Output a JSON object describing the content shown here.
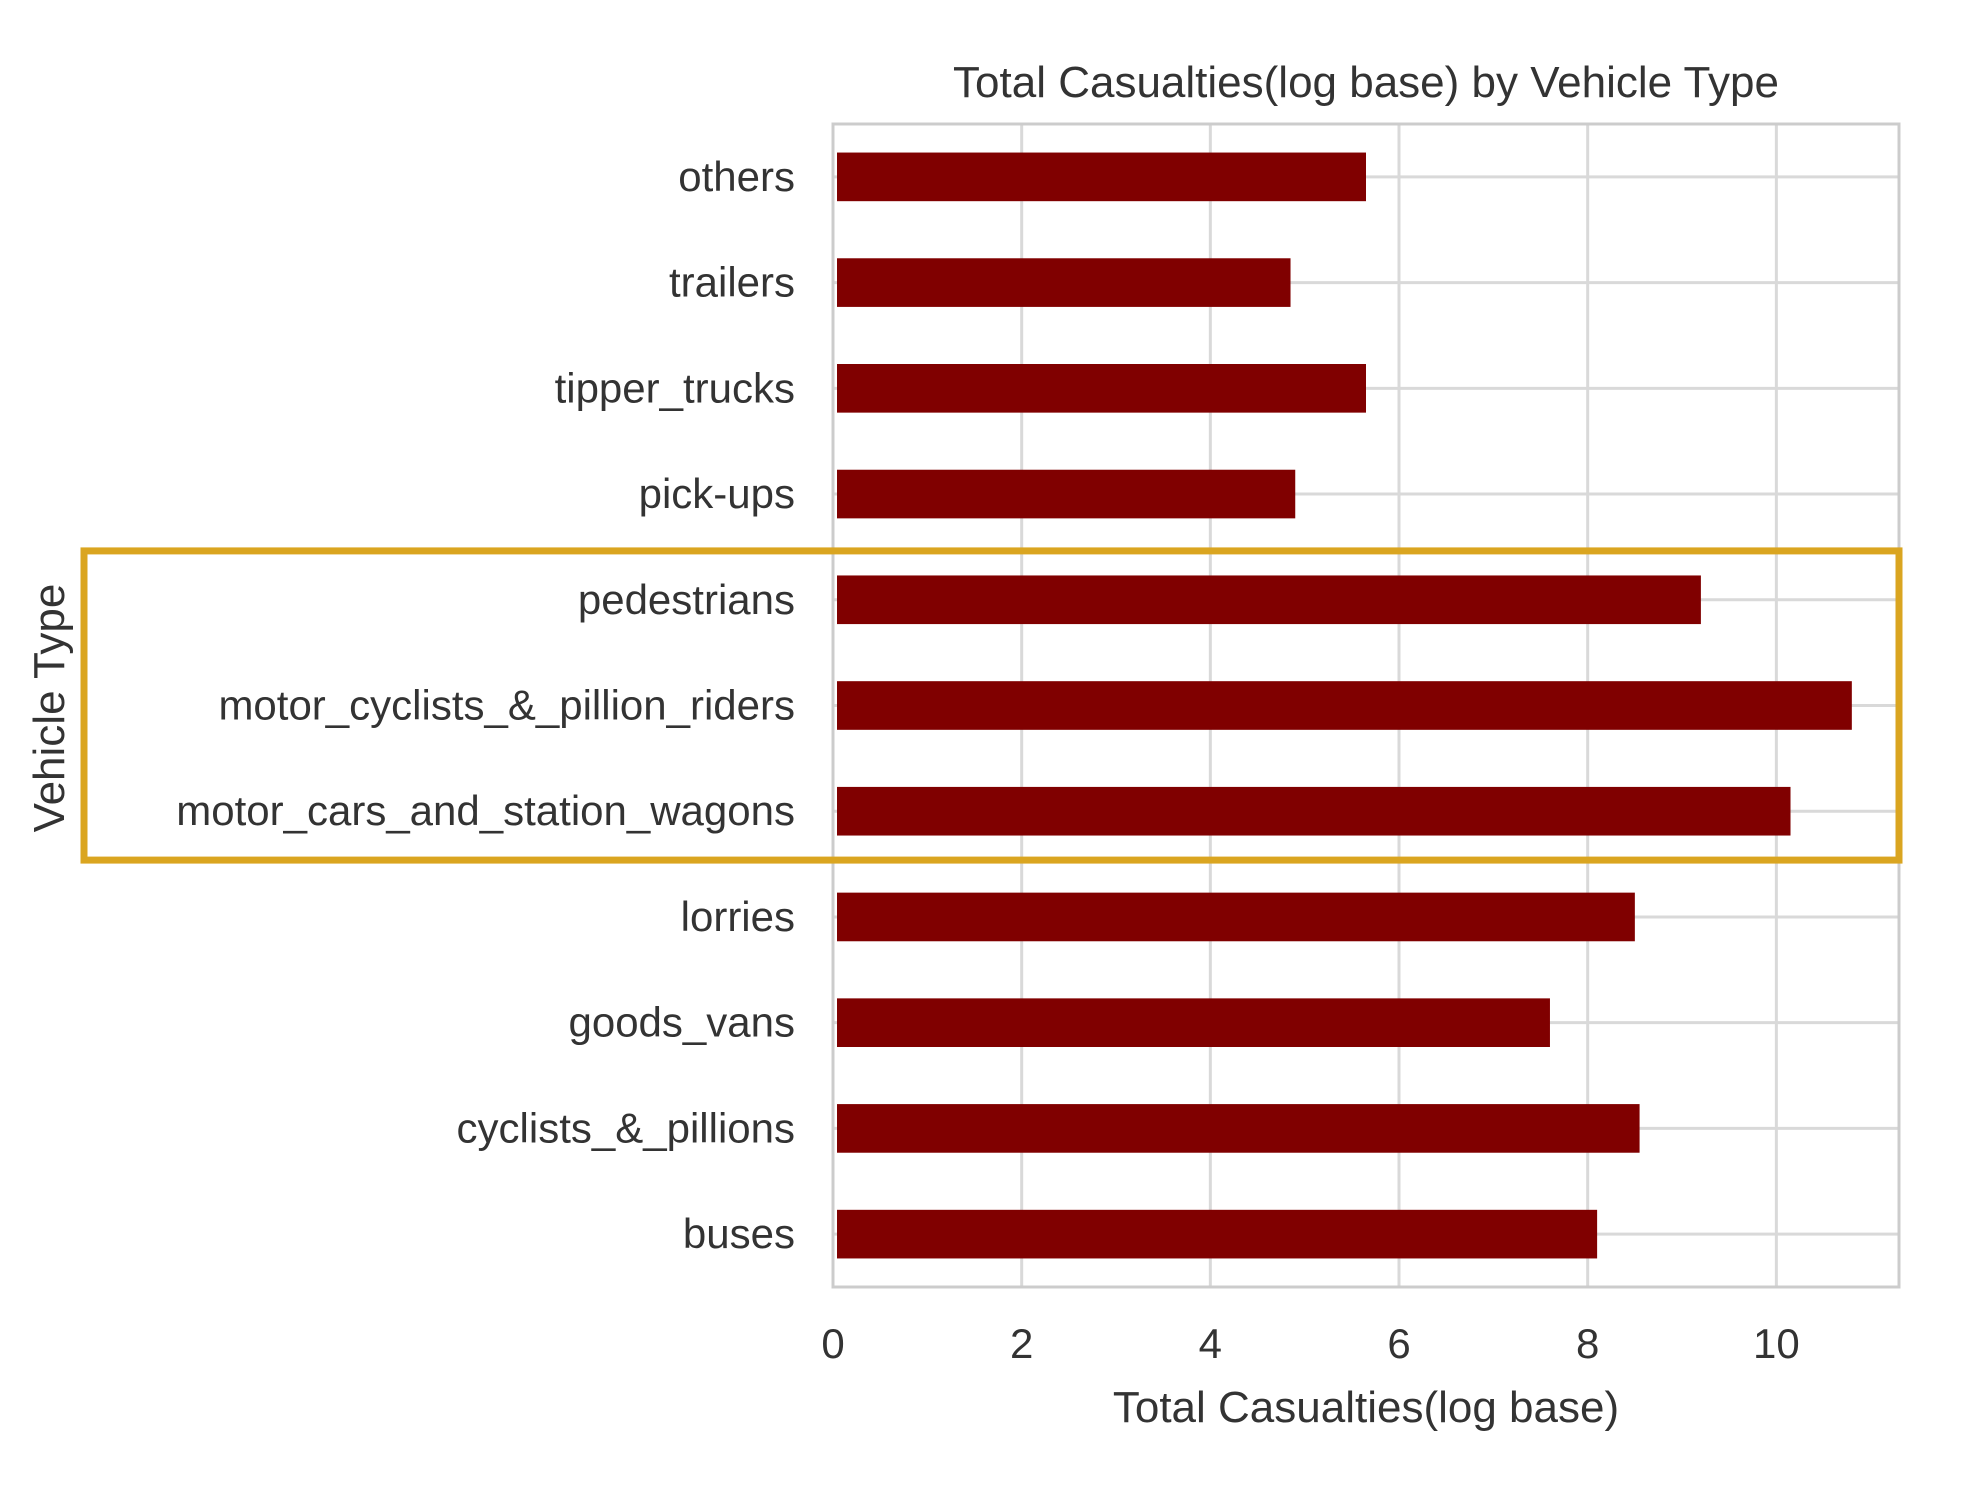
{
  "chart_data": {
    "type": "bar",
    "orientation": "horizontal",
    "title": "Total Casualties(log base) by Vehicle Type",
    "xlabel": "Total Casualties(log base)",
    "ylabel": "Vehicle Type",
    "categories": [
      "buses",
      "cyclists_&_pillions",
      "goods_vans",
      "lorries",
      "motor_cars_and_station_wagons",
      "motor_cyclists_&_pillion_riders",
      "pedestrians",
      "pick-ups",
      "tipper_trucks",
      "trailers",
      "others"
    ],
    "values": [
      8.1,
      8.55,
      7.6,
      8.5,
      10.15,
      10.8,
      9.2,
      4.9,
      5.65,
      4.85,
      5.65
    ],
    "xlim": [
      0,
      11.3
    ],
    "xticks": [
      0,
      2,
      4,
      6,
      8,
      10
    ],
    "grid": true,
    "bar_color": "#800000",
    "highlight": {
      "color": "#DAA520",
      "categories": [
        "pedestrians",
        "motor_cyclists_&_pillion_riders",
        "motor_cars_and_station_wagons"
      ]
    }
  }
}
